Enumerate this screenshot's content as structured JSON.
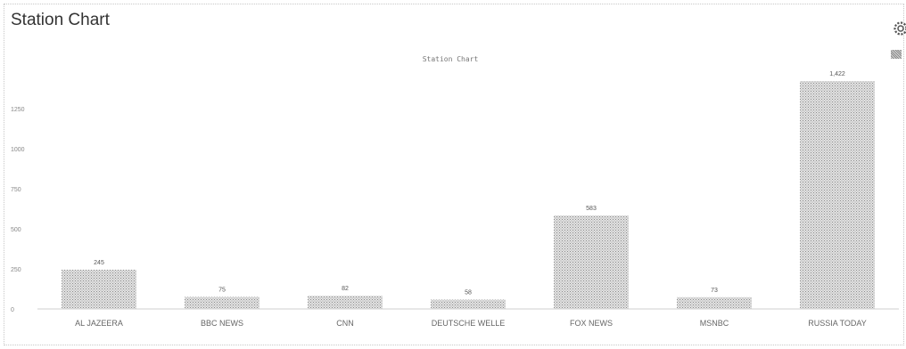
{
  "header": {
    "title": "Station Chart",
    "settings_icon": "gear-icon"
  },
  "chart_data": {
    "type": "bar",
    "title": "Station Chart",
    "subtitle": "",
    "caption": "",
    "footnote": "",
    "categories": [
      "AL JAZEERA",
      "BBC NEWS",
      "CNN",
      "DEUTSCHE WELLE",
      "FOX NEWS",
      "MSNBC",
      "RUSSIA TODAY"
    ],
    "series": [
      {
        "name": "",
        "values": [
          245,
          75,
          82,
          58,
          583,
          73,
          1422
        ]
      }
    ],
    "value_labels": [
      "245",
      "75",
      "82",
      "58",
      "583",
      "73",
      "1,422"
    ],
    "yticks": [
      "0",
      "250",
      "500",
      "750",
      "1000",
      "1250"
    ],
    "ylim": [
      0,
      1300
    ],
    "grid": false,
    "legend": "top-right",
    "bar_color": "#a8a8a8",
    "bar_pattern": "stippled grey"
  }
}
